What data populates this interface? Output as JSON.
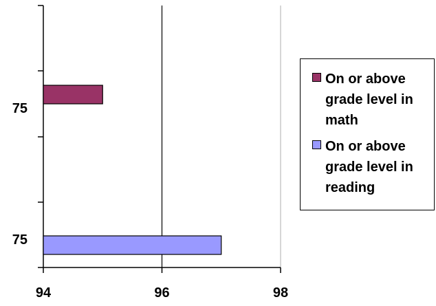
{
  "chart_data": {
    "type": "bar",
    "orientation": "horizontal",
    "categories": [
      "75",
      "75"
    ],
    "series": [
      {
        "name": "On or above grade level in math",
        "values": [
          95,
          null
        ],
        "color": "#993366"
      },
      {
        "name": "On or above grade level in reading",
        "values": [
          null,
          97
        ],
        "color": "#9999ff"
      }
    ],
    "x_ticks": [
      "94",
      "96",
      "98"
    ],
    "xlim": [
      94,
      98
    ],
    "gridlines": "vertical at tick marks",
    "legend_position": "right"
  }
}
